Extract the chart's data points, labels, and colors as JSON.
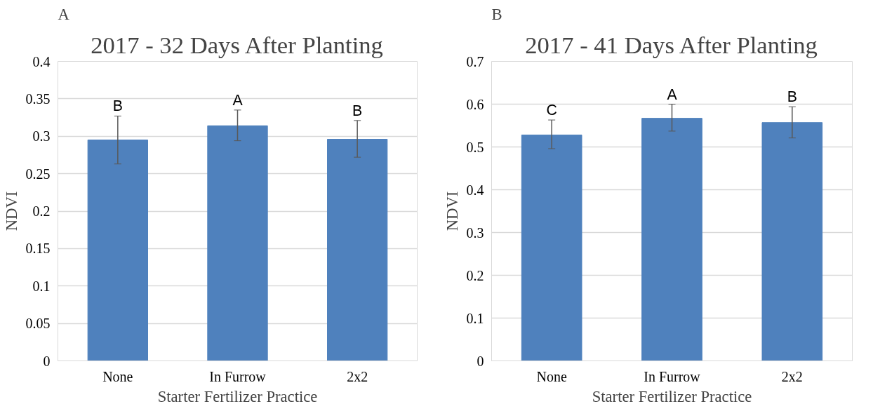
{
  "chart_data": [
    {
      "type": "bar",
      "title": "2017 - 32 Days After Planting",
      "xlabel": "Starter Fertilizer Practice",
      "ylabel": "NDVI",
      "categories": [
        "None",
        "In Furrow",
        "2x2"
      ],
      "values": [
        0.295,
        0.314,
        0.296
      ],
      "color": "#4f81bd",
      "errors": [
        [
          0.263,
          0.327
        ],
        [
          0.294,
          0.335
        ],
        [
          0.272,
          0.321
        ]
      ],
      "ylim": [
        0,
        0.4
      ],
      "yticks": [
        0,
        0.05,
        0.1,
        0.15,
        0.2,
        0.25,
        0.3,
        0.35,
        0.4
      ],
      "grid": "y",
      "annotations": [
        "A",
        {
          "text": "B",
          "x": "None",
          "y": 0.327
        },
        {
          "text": "A",
          "x": "In Furrow",
          "y": 0.335
        },
        {
          "text": "B",
          "x": "2x2",
          "y": 0.321
        }
      ]
    },
    {
      "type": "bar",
      "title": "2017 - 41 Days After Planting",
      "xlabel": "Starter Fertilizer Practice",
      "ylabel": "NDVI",
      "categories": [
        "None",
        "In Furrow",
        "2x2"
      ],
      "values": [
        0.528,
        0.567,
        0.557
      ],
      "color": "#4f81bd",
      "errors": [
        [
          0.496,
          0.563
        ],
        [
          0.537,
          0.6
        ],
        [
          0.521,
          0.594
        ]
      ],
      "ylim": [
        0,
        0.7
      ],
      "yticks": [
        0,
        0.1,
        0.2,
        0.3,
        0.4,
        0.5,
        0.6,
        0.7
      ],
      "grid": "y",
      "annotations": [
        "B",
        {
          "text": "C",
          "x": "None",
          "y": 0.563
        },
        {
          "text": "A",
          "x": "In Furrow",
          "y": 0.6
        },
        {
          "text": "B",
          "x": "2x2",
          "y": 0.594
        }
      ]
    }
  ]
}
